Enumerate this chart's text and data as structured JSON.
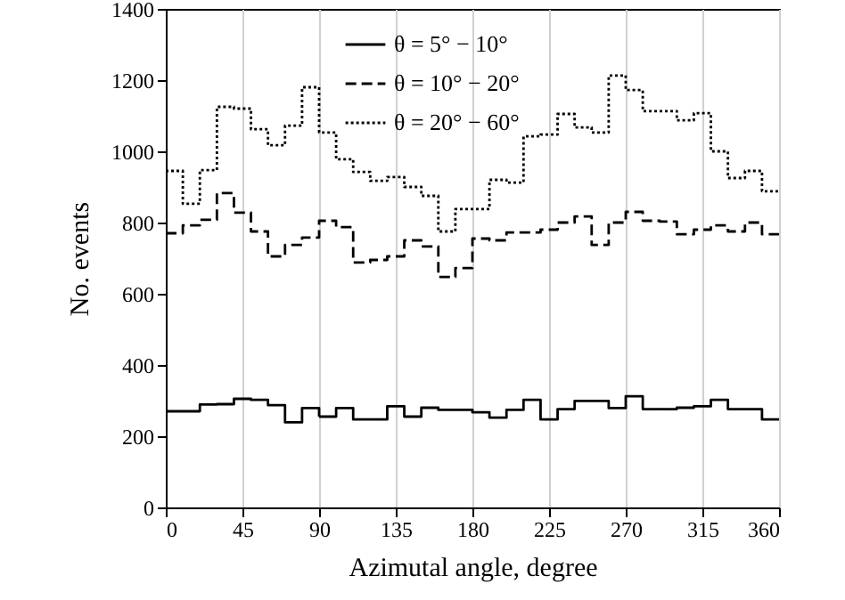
{
  "chart_data": {
    "type": "histogram",
    "xlabel": "Azimutal angle, degree",
    "ylabel": "No. events",
    "bins": [
      0,
      10,
      20,
      30,
      40,
      50,
      60,
      70,
      80,
      90,
      100,
      110,
      120,
      130,
      140,
      150,
      160,
      170,
      180,
      190,
      200,
      210,
      220,
      230,
      240,
      250,
      260,
      270,
      280,
      290,
      300,
      310,
      320,
      330,
      340,
      350,
      360
    ],
    "series": [
      {
        "name": "θ =  5° − 10°",
        "color": "#000000",
        "line_style": "solid",
        "values": [
          270,
          270,
          289,
          290,
          305,
          302,
          287,
          239,
          279,
          255,
          279,
          247,
          247,
          284,
          255,
          280,
          274,
          274,
          267,
          252,
          274,
          302,
          247,
          276,
          299,
          299,
          279,
          312,
          276,
          276,
          280,
          284,
          302,
          276,
          276,
          247
        ]
      },
      {
        "name": "θ = 10° − 20°",
        "color": "#000000",
        "line_style": "dashed",
        "values": [
          770,
          792,
          808,
          883,
          828,
          775,
          705,
          737,
          758,
          805,
          787,
          688,
          695,
          705,
          750,
          733,
          647,
          672,
          755,
          750,
          772,
          772,
          780,
          800,
          817,
          737,
          800,
          830,
          805,
          803,
          767,
          780,
          792,
          775,
          800,
          767
        ]
      },
      {
        "name": "θ = 20° − 60°",
        "color": "#000000",
        "line_style": "dotted",
        "values": [
          945,
          853,
          947,
          1125,
          1120,
          1062,
          1017,
          1072,
          1180,
          1053,
          978,
          942,
          917,
          928,
          900,
          875,
          775,
          838,
          838,
          920,
          912,
          1042,
          1047,
          1105,
          1067,
          1053,
          1213,
          1172,
          1113,
          1113,
          1087,
          1107,
          1000,
          925,
          945,
          888
        ]
      }
    ],
    "xlim": [
      0,
      360
    ],
    "xticks": [
      0,
      45,
      90,
      135,
      180,
      225,
      270,
      315,
      360
    ],
    "ylim": [
      0,
      1400
    ],
    "yticks": [
      0,
      200,
      400,
      600,
      800,
      1000,
      1200,
      1400
    ],
    "grid": "x",
    "legend": "top"
  }
}
